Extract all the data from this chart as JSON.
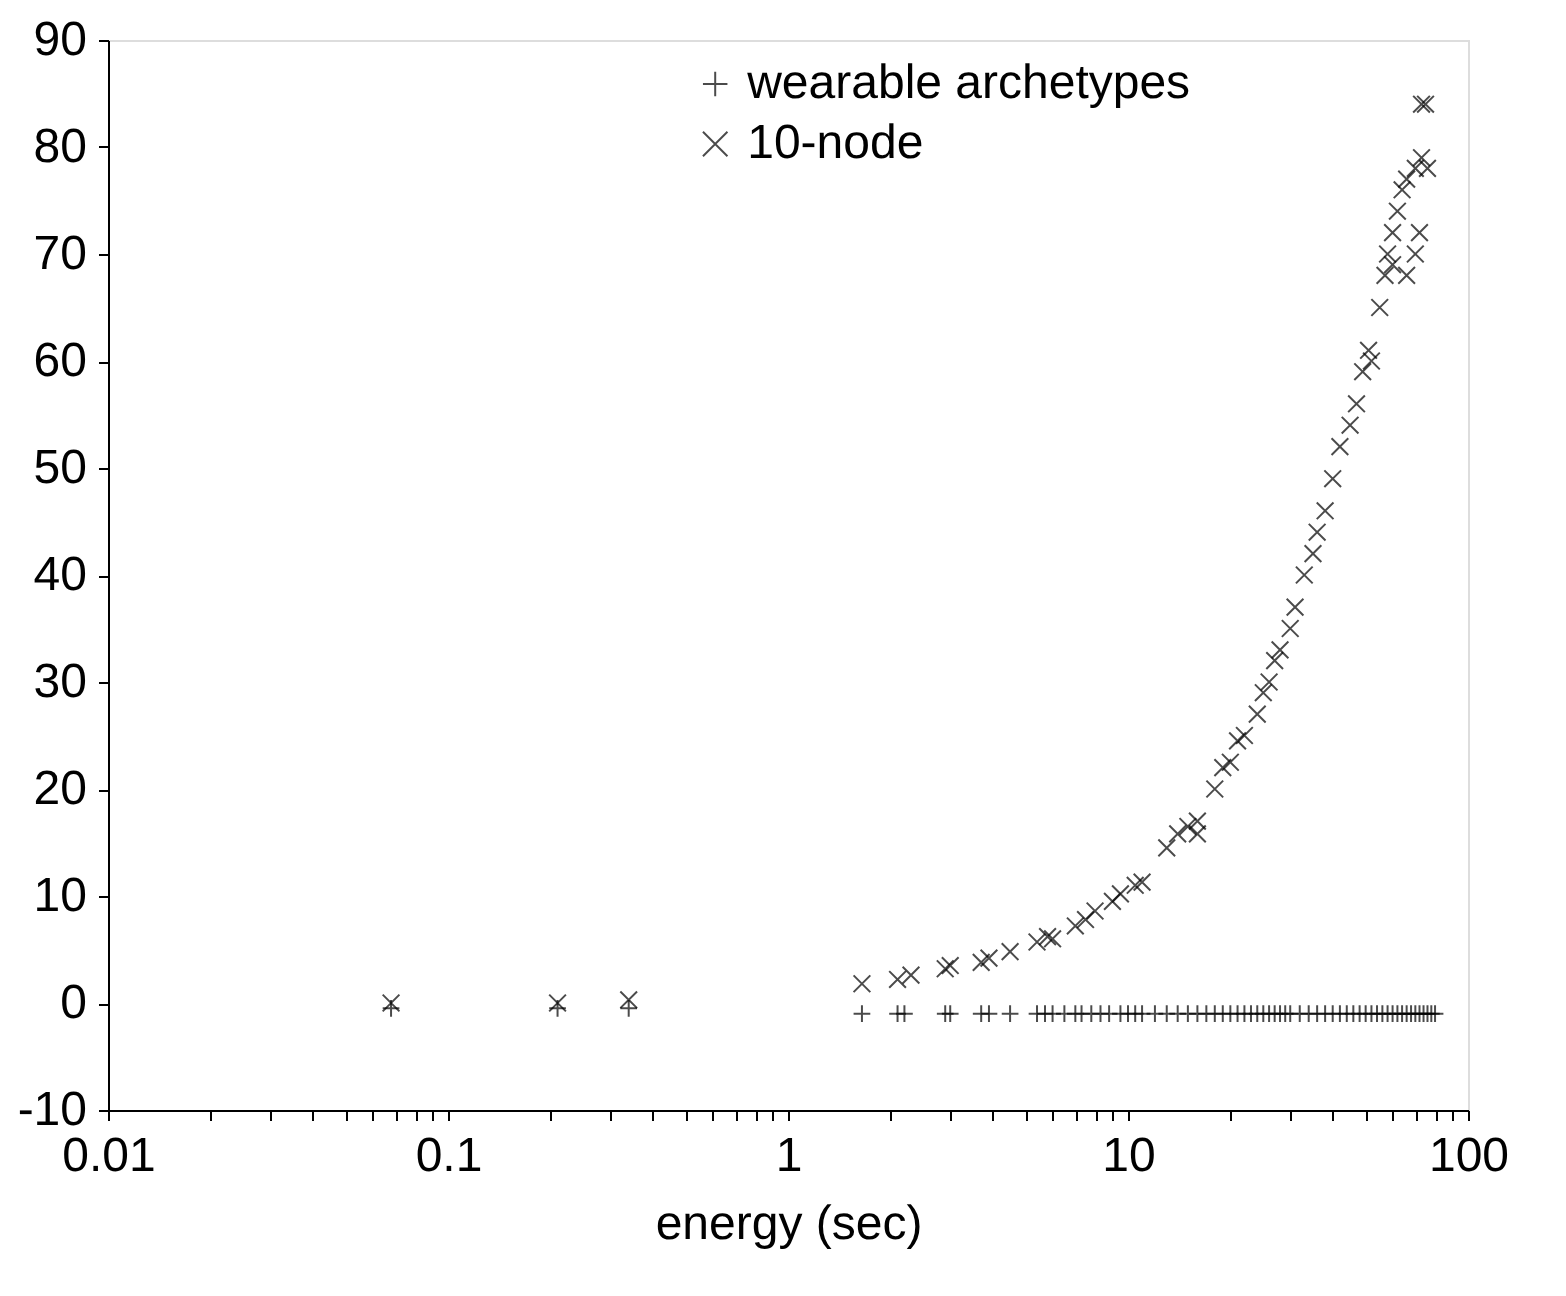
{
  "chart_data": {
    "type": "scatter",
    "xlabel": "energy (sec)",
    "log": "x",
    "xlim": [
      0.01,
      100
    ],
    "xticks": [
      0.01,
      {
        "value": 0.02,
        "label": null
      },
      {
        "value": 0.03,
        "label": null
      },
      {
        "value": 0.04,
        "label": null
      },
      {
        "value": 0.05,
        "label": null
      },
      {
        "value": 0.06,
        "label": null
      },
      {
        "value": 0.07,
        "label": null
      },
      {
        "value": 0.08,
        "label": null
      },
      {
        "value": 0.09,
        "label": null
      },
      0.1,
      {
        "value": 0.2,
        "label": null
      },
      {
        "value": 0.3,
        "label": null
      },
      {
        "value": 0.4,
        "label": null
      },
      {
        "value": 0.5,
        "label": null
      },
      {
        "value": 0.6,
        "label": null
      },
      {
        "value": 0.7,
        "label": null
      },
      {
        "value": 0.8,
        "label": null
      },
      {
        "value": 0.9,
        "label": null
      },
      1,
      {
        "value": 2,
        "label": null
      },
      {
        "value": 3,
        "label": null
      },
      {
        "value": 4,
        "label": null
      },
      {
        "value": 5,
        "label": null
      },
      {
        "value": 6,
        "label": null
      },
      {
        "value": 7,
        "label": null
      },
      {
        "value": 8,
        "label": null
      },
      {
        "value": 9,
        "label": null
      },
      10,
      {
        "value": 20,
        "label": null
      },
      {
        "value": 30,
        "label": null
      },
      {
        "value": 40,
        "label": null
      },
      {
        "value": 50,
        "label": null
      },
      {
        "value": 60,
        "label": null
      },
      {
        "value": 70,
        "label": null
      },
      {
        "value": 80,
        "label": null
      },
      {
        "value": 90,
        "label": null
      },
      100
    ],
    "ylim": [
      -10,
      90
    ],
    "yticks": [
      -10,
      0,
      10,
      20,
      30,
      40,
      50,
      60,
      70,
      80,
      90
    ],
    "grid": false,
    "legend": "top right",
    "series": [
      {
        "name": "wearable archetypes",
        "color": "#000000",
        "marker": "cross",
        "x": [
          0.068,
          0.21,
          0.34,
          1.65,
          2.1,
          2.2,
          2.9,
          3.0,
          3.7,
          3.9,
          4.5,
          5.4,
          5.7,
          6.0,
          6.5,
          7.0,
          7.3,
          7.8,
          8.3,
          8.8,
          9.5,
          10,
          10.5,
          11,
          12,
          13,
          14,
          15,
          16,
          17,
          18,
          19,
          20,
          21,
          22,
          23,
          24,
          25,
          26,
          27,
          28,
          29,
          30,
          32,
          34,
          36,
          38,
          40,
          42,
          44,
          46,
          48,
          50,
          52,
          54,
          56,
          58,
          60,
          62,
          64,
          66,
          68,
          70,
          72,
          74,
          76,
          78,
          80
        ],
        "values": [
          -0.5,
          -0.5,
          -0.5,
          -1,
          -1,
          -1,
          -1,
          -1,
          -1,
          -1,
          -1,
          -1,
          -1,
          -1,
          -1,
          -1,
          -1,
          -1,
          -1,
          -1,
          -1,
          -1,
          -1,
          -1,
          -1,
          -1,
          -1,
          -1,
          -1,
          -1,
          -1,
          -1,
          -1,
          -1,
          -1,
          -1,
          -1,
          -1,
          -1,
          -1,
          -1,
          -1,
          -1,
          -1,
          -1,
          -1,
          -1,
          -1,
          -1,
          -1,
          -1,
          -1,
          -1,
          -1,
          -1,
          -1,
          -1,
          -1,
          -1,
          -1,
          -1,
          -1,
          -1,
          -1,
          -1,
          -1,
          -1,
          -1
        ]
      },
      {
        "name": "10-node",
        "color": "#000000",
        "marker": "x",
        "x": [
          0.068,
          0.21,
          0.34,
          1.65,
          2.1,
          2.3,
          2.9,
          3.0,
          3.7,
          3.9,
          4.5,
          5.4,
          5.8,
          6.0,
          7.0,
          7.5,
          8.0,
          9.0,
          9.5,
          10.5,
          11,
          13,
          14,
          15,
          16,
          16,
          18,
          19,
          20,
          21,
          22,
          24,
          25,
          26,
          27,
          28,
          30,
          31,
          33,
          35,
          36,
          38,
          40,
          42,
          45,
          47,
          49,
          51,
          52,
          55,
          57,
          58,
          60,
          62,
          64,
          66,
          70,
          73,
          76,
          66,
          60,
          70,
          72,
          73,
          75
        ],
        "values": [
          0,
          0,
          0.3,
          1.8,
          2.2,
          2.6,
          3.2,
          3.5,
          3.8,
          4.2,
          4.8,
          5.7,
          6.2,
          6.0,
          7.2,
          7.8,
          8.6,
          9.5,
          10.2,
          11,
          11.3,
          14.5,
          15.8,
          16.5,
          17,
          15.8,
          20,
          22,
          22.5,
          24.5,
          25,
          27,
          29,
          30,
          32,
          33,
          35,
          37,
          40,
          42,
          44,
          46,
          49,
          52,
          54,
          56,
          59,
          61,
          60,
          65,
          68,
          70,
          72,
          74,
          76,
          77,
          78,
          79,
          78,
          68,
          69,
          70,
          72,
          84,
          84
        ]
      }
    ]
  }
}
